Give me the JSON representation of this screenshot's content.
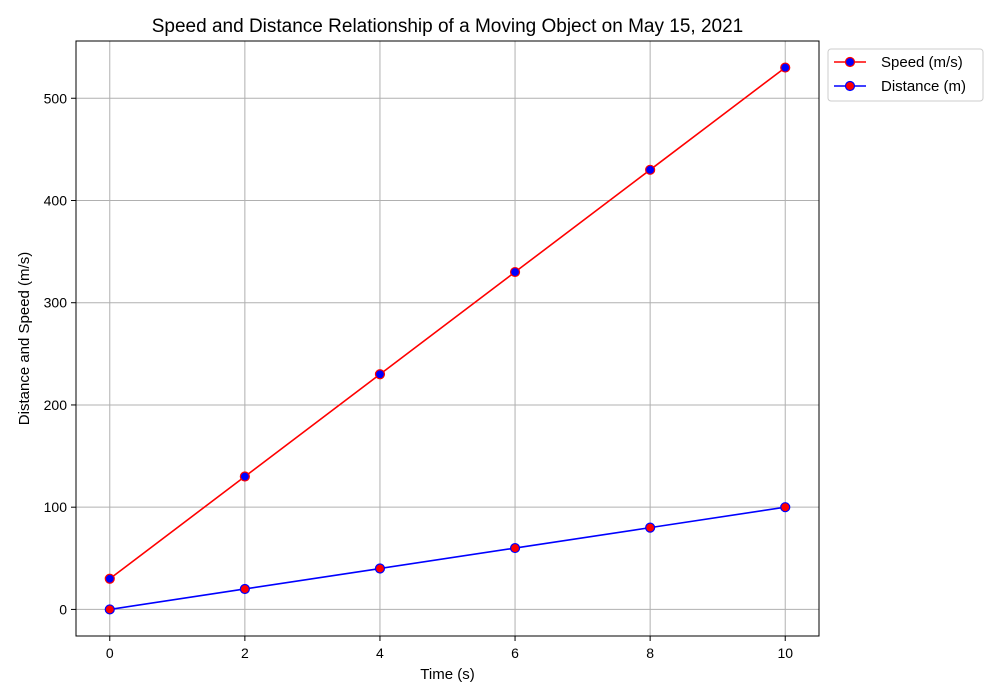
{
  "chart_data": {
    "type": "line",
    "title": "Speed and Distance Relationship of a Moving Object on May 15, 2021",
    "xlabel": "Time (s)",
    "ylabel": "Distance and Speed (m/s)",
    "x": [
      0,
      2,
      4,
      6,
      8,
      10
    ],
    "xlim": [
      -0.5,
      10.5
    ],
    "ylim": [
      -26,
      556
    ],
    "xticks": [
      0,
      2,
      4,
      6,
      8,
      10
    ],
    "yticks": [
      0,
      100,
      200,
      300,
      400,
      500
    ],
    "grid": true,
    "legend_position": "upper-right, outside plot",
    "series": [
      {
        "name": "Speed (m/s)",
        "values": [
          30,
          130,
          230,
          330,
          430,
          530
        ],
        "line_color": "#ff0000",
        "marker_face": "#0000ff",
        "marker_edge": "#ff0000"
      },
      {
        "name": "Distance (m)",
        "values": [
          0,
          20,
          40,
          60,
          80,
          100
        ],
        "line_color": "#0000ff",
        "marker_face": "#ff0000",
        "marker_edge": "#0000ff"
      }
    ]
  }
}
